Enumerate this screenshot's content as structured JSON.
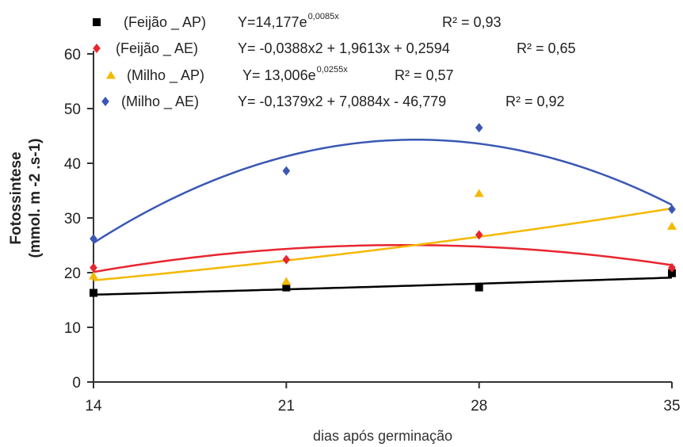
{
  "chart_data": {
    "type": "scatter",
    "xlabel": "dias após germinação",
    "ylabel_line1": "Fotossintese",
    "ylabel_line2": "(mmol. m -2 .s-1)",
    "xlim": [
      14,
      35
    ],
    "ylim": [
      0,
      60
    ],
    "xticks": [
      14,
      21,
      28,
      35
    ],
    "yticks": [
      0,
      10,
      20,
      30,
      40,
      50,
      60
    ],
    "grid": false,
    "legend_position": "top",
    "series": [
      {
        "name": "(Feijão _ AP)",
        "marker": "square",
        "color": "#000000",
        "x": [
          14,
          21,
          28,
          35
        ],
        "y": [
          16.3,
          17.3,
          17.3,
          19.9
        ],
        "trend": {
          "kind": "exp",
          "a": 14.177,
          "b": 0.0085
        },
        "equation": "Y=14,177e",
        "exponent": "0,0085x",
        "r2": "R² = 0,93"
      },
      {
        "name": "(Feijão _ AE)",
        "marker": "diamond",
        "color": "#e8262f",
        "x": [
          14,
          21,
          28,
          35
        ],
        "y": [
          20.9,
          22.4,
          26.9,
          20.9
        ],
        "trend": {
          "kind": "poly2",
          "a": -0.0388,
          "b": 1.9613,
          "c": 0.2594
        },
        "equation": "Y=  -0,0388x2 + 1,9613x + 0,2594",
        "exponent": "",
        "r2": "R² = 0,65"
      },
      {
        "name": "(Milho _ AP)",
        "marker": "triangle",
        "color": "#f5b800",
        "x": [
          14,
          21,
          28,
          35
        ],
        "y": [
          19.4,
          18.4,
          34.5,
          28.5
        ],
        "trend": {
          "kind": "exp",
          "a": 13.006,
          "b": 0.0255
        },
        "equation": "Y= 13,006e",
        "exponent": "0,0255x",
        "r2": "R² =  0,57"
      },
      {
        "name": "(Milho _ AE)",
        "marker": "diamond",
        "color": "#3a57b4",
        "x": [
          14,
          21,
          28,
          35
        ],
        "y": [
          26.2,
          38.6,
          46.5,
          31.6
        ],
        "trend": {
          "kind": "poly2",
          "a": -0.1379,
          "b": 7.0884,
          "c": -46.779
        },
        "equation": "Y=  -0,1379x2 + 7,0884x - 46,779",
        "exponent": "",
        "r2": "R² =  0,92"
      }
    ]
  }
}
